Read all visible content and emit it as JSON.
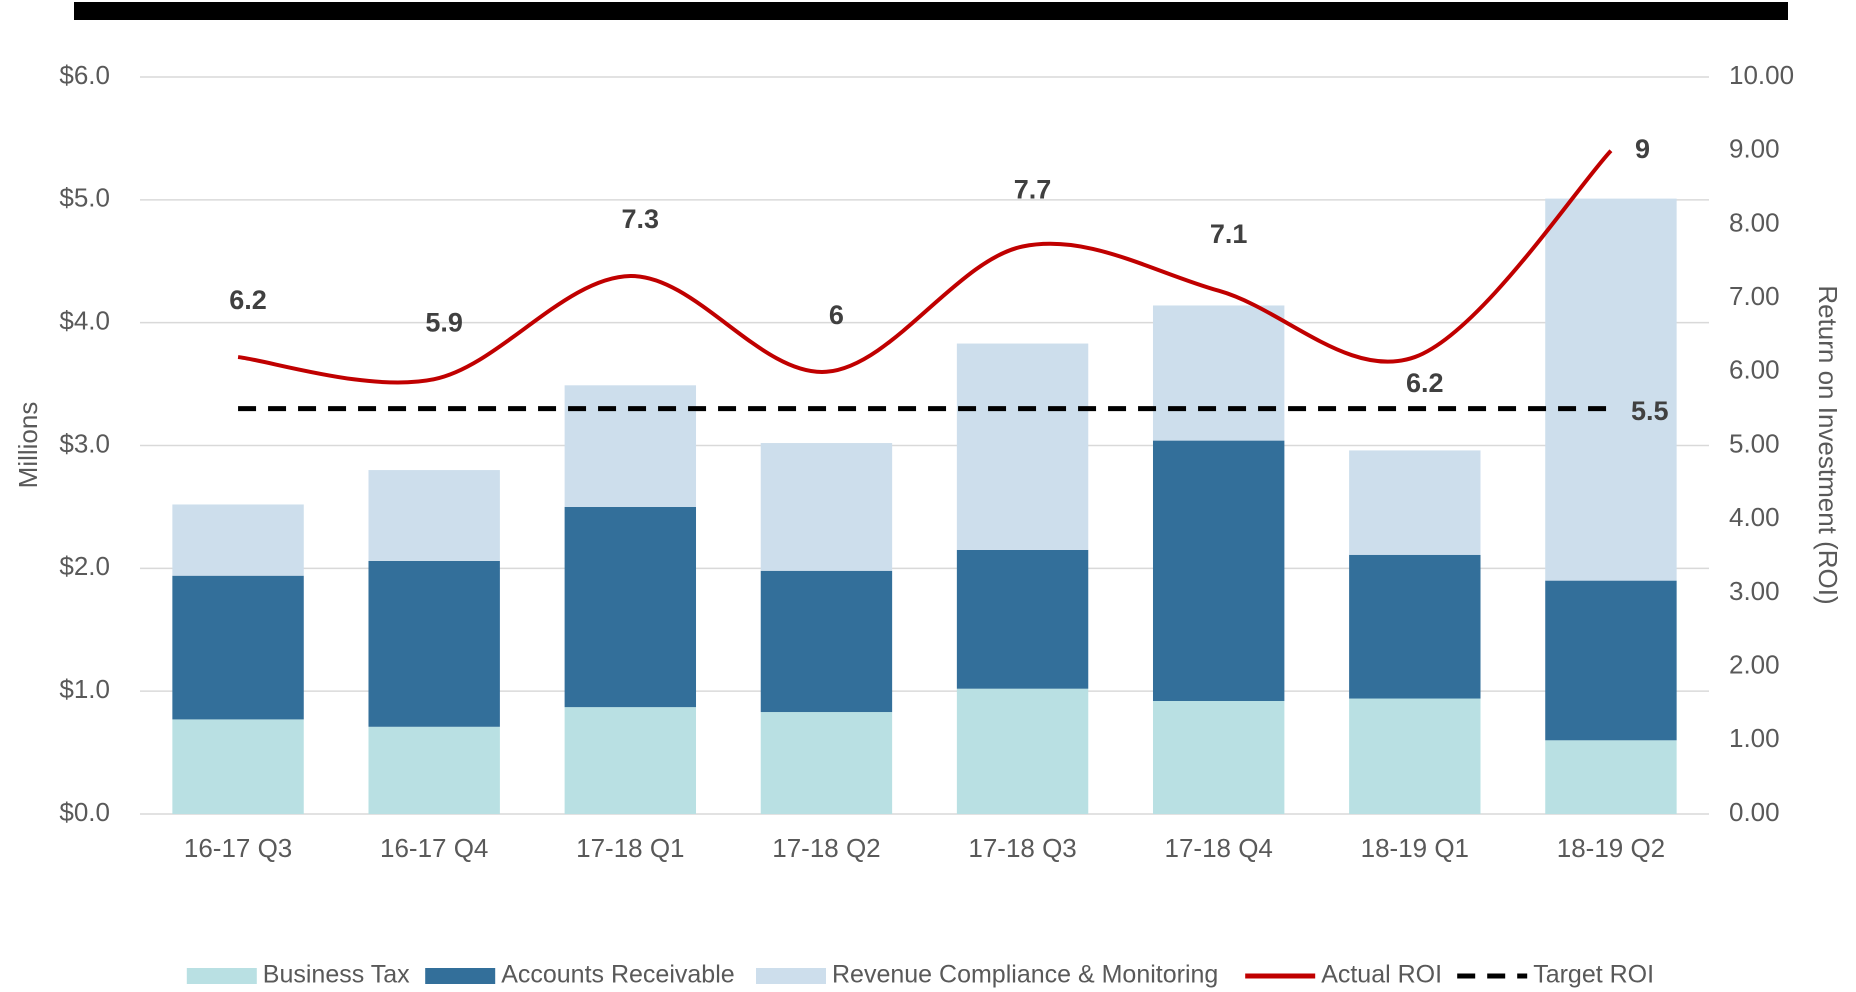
{
  "chart_data": {
    "type": "bar",
    "categories": [
      "16-17 Q3",
      "16-17 Q4",
      "17-18 Q1",
      "17-18 Q2",
      "17-18 Q3",
      "17-18 Q4",
      "18-19 Q1",
      "18-19 Q2"
    ],
    "series": [
      {
        "name": "Business Tax",
        "type": "bar",
        "color": "#b9e0e3",
        "values": [
          0.77,
          0.71,
          0.87,
          0.83,
          1.02,
          0.92,
          0.94,
          0.6
        ]
      },
      {
        "name": "Accounts Receivable",
        "type": "bar",
        "color": "#336f9a",
        "values": [
          1.17,
          1.35,
          1.63,
          1.15,
          1.13,
          2.12,
          1.17,
          1.3
        ]
      },
      {
        "name": "Revenue Compliance & Monitoring",
        "type": "bar",
        "color": "#cddeec",
        "values": [
          0.58,
          0.74,
          0.99,
          1.04,
          1.68,
          1.1,
          0.85,
          3.11
        ]
      },
      {
        "name": "Actual ROI",
        "type": "line",
        "axis": "y2",
        "color": "#c00000",
        "smooth": true,
        "data_labels": "all",
        "values": [
          6.2,
          5.9,
          7.3,
          6.0,
          7.7,
          7.1,
          6.2,
          9.0
        ]
      },
      {
        "name": "Target ROI",
        "type": "line",
        "axis": "y2",
        "color": "#000000",
        "dashed": true,
        "data_labels": "last",
        "values": [
          5.5,
          5.5,
          5.5,
          5.5,
          5.5,
          5.5,
          5.5,
          5.5
        ]
      }
    ],
    "y_label": "Millions",
    "y2_label": "Return on Investment (ROI)",
    "ylim": [
      0,
      6
    ],
    "yticks": [
      {
        "value": 0,
        "label": "$0.0"
      },
      {
        "value": 1,
        "label": "$1.0"
      },
      {
        "value": 2,
        "label": "$2.0"
      },
      {
        "value": 3,
        "label": "$3.0"
      },
      {
        "value": 4,
        "label": "$4.0"
      },
      {
        "value": 5,
        "label": "$5.0"
      },
      {
        "value": 6,
        "label": "$6.0"
      }
    ],
    "y2lim": [
      0,
      10
    ],
    "y2ticks": [
      {
        "value": 0,
        "label": "0.00"
      },
      {
        "value": 1,
        "label": "1.00"
      },
      {
        "value": 2,
        "label": "2.00"
      },
      {
        "value": 3,
        "label": "3.00"
      },
      {
        "value": 4,
        "label": "4.00"
      },
      {
        "value": 5,
        "label": "5.00"
      },
      {
        "value": 6,
        "label": "6.00"
      },
      {
        "value": 7,
        "label": "7.00"
      },
      {
        "value": 8,
        "label": "8.00"
      },
      {
        "value": 9,
        "label": "9.00"
      },
      {
        "value": 10,
        "label": "10.00"
      }
    ],
    "grid": true,
    "legend": "bottom"
  }
}
